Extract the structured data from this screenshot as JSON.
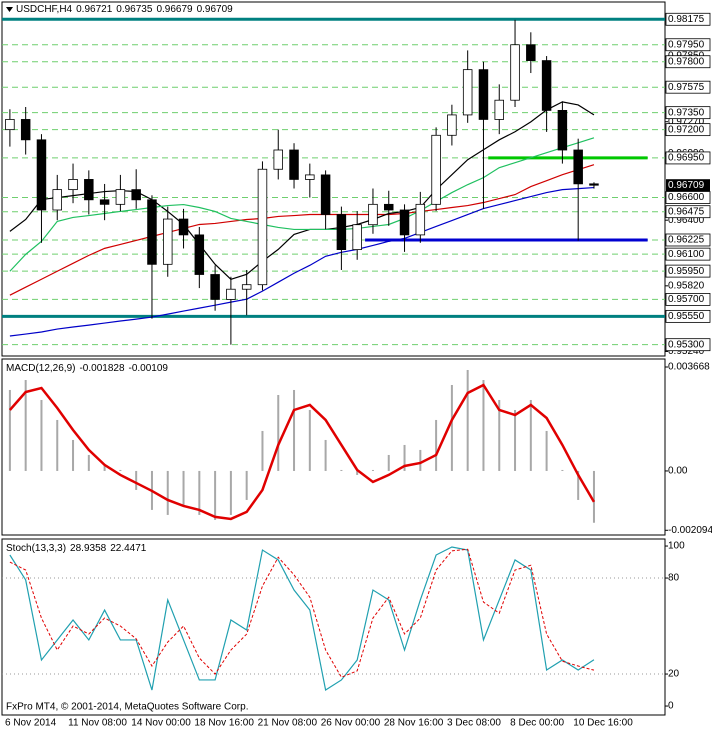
{
  "chart_data": [
    {
      "type": "candlestick",
      "title": "USDCHF,H4",
      "categories": [
        "6 Nov 2014",
        null,
        null,
        null,
        "11 Nov 08:00",
        null,
        null,
        null,
        "14 Nov 00:00",
        null,
        null,
        null,
        "18 Nov 16:00",
        null,
        null,
        null,
        "21 Nov 08:00",
        null,
        null,
        null,
        "26 Nov 00:00",
        null,
        null,
        null,
        "28 Nov 16:00",
        null,
        null,
        null,
        "3 Dec 08:00",
        null,
        null,
        null,
        "8 Dec 00:00",
        null,
        null,
        null,
        "10 Dec 16:00",
        null
      ],
      "open": [
        0.972,
        0.9729,
        0.9711,
        0.9649,
        0.9667,
        0.9676,
        0.9658,
        0.9654,
        0.9667,
        0.9658,
        0.9601,
        0.9641,
        0.9627,
        0.9592,
        0.957,
        0.9579,
        0.9583,
        0.9685,
        0.9702,
        0.9676,
        0.968,
        0.9645,
        0.9614,
        0.9636,
        0.9654,
        0.9649,
        0.9627,
        0.9654,
        0.9715,
        0.9733,
        0.9773,
        0.9729,
        0.9746,
        0.9795,
        0.9781,
        0.9737,
        0.9702,
        0.96721
      ],
      "high": [
        0.9738,
        0.974,
        0.9716,
        0.968,
        0.969,
        0.9684,
        0.9672,
        0.968,
        0.9685,
        0.9662,
        0.9652,
        0.965,
        0.9634,
        0.96,
        0.959,
        0.9596,
        0.9692,
        0.972,
        0.9708,
        0.969,
        0.9684,
        0.9652,
        0.9648,
        0.9668,
        0.9666,
        0.9654,
        0.9665,
        0.9722,
        0.9742,
        0.979,
        0.978,
        0.976,
        0.9817,
        0.9806,
        0.9785,
        0.9745,
        0.9712,
        0.96735
      ],
      "low": [
        0.9705,
        0.9698,
        0.962,
        0.964,
        0.9655,
        0.9645,
        0.964,
        0.9648,
        0.965,
        0.9553,
        0.959,
        0.9615,
        0.958,
        0.956,
        0.953,
        0.9556,
        0.9578,
        0.9676,
        0.9668,
        0.966,
        0.9632,
        0.9596,
        0.9605,
        0.9628,
        0.9635,
        0.9612,
        0.962,
        0.9648,
        0.9706,
        0.9726,
        0.965,
        0.9716,
        0.974,
        0.977,
        0.9718,
        0.969,
        0.9622,
        0.96679
      ],
      "close": [
        0.9729,
        0.9711,
        0.9649,
        0.9667,
        0.9676,
        0.9658,
        0.9654,
        0.9667,
        0.9658,
        0.9601,
        0.9641,
        0.9627,
        0.9592,
        0.957,
        0.9579,
        0.9583,
        0.9685,
        0.9702,
        0.9676,
        0.968,
        0.9645,
        0.9614,
        0.9636,
        0.9654,
        0.9649,
        0.9627,
        0.9654,
        0.9715,
        0.9733,
        0.9773,
        0.9729,
        0.9746,
        0.9795,
        0.9781,
        0.9737,
        0.9702,
        0.96721,
        0.96709
      ],
      "up_color": "#ffffff",
      "down_color": "#000000",
      "series": [
        {
          "color": "#0000c8",
          "values": [
            0.95377,
            0.95394,
            0.95412,
            0.95438,
            0.95456,
            0.95473,
            0.95491,
            0.95509,
            0.95526,
            0.95544,
            0.9557,
            0.95597,
            0.95623,
            0.95649,
            0.95676,
            0.95702,
            0.95773,
            0.95852,
            0.95931,
            0.96001,
            0.96081,
            0.96116,
            0.96142,
            0.96177,
            0.96213,
            0.96239,
            0.96292,
            0.96345,
            0.96397,
            0.9645,
            0.96503,
            0.96538,
            0.96573,
            0.96609,
            0.96644,
            0.9667,
            0.96679,
            0.96688
          ]
        },
        {
          "color": "#d00000",
          "values": [
            0.95737,
            0.95808,
            0.95878,
            0.95949,
            0.96019,
            0.96089,
            0.96151,
            0.96186,
            0.96221,
            0.96257,
            0.96292,
            0.96327,
            0.96362,
            0.96371,
            0.96389,
            0.96406,
            0.96415,
            0.96433,
            0.96441,
            0.9645,
            0.9645,
            0.9645,
            0.9645,
            0.9645,
            0.9645,
            0.96459,
            0.96477,
            0.96494,
            0.96512,
            0.96529,
            0.96556,
            0.96591,
            0.96626,
            0.96697,
            0.96749,
            0.96802,
            0.96846,
            0.9689
          ]
        },
        {
          "color": "#000000",
          "values": [
            0.96301,
            0.96406,
            0.96582,
            0.966,
            0.96617,
            0.96635,
            0.96653,
            0.96661,
            0.96653,
            0.96582,
            0.96477,
            0.96362,
            0.96186,
            0.9601,
            0.95878,
            0.95922,
            0.96037,
            0.96142,
            0.96274,
            0.96318,
            0.96318,
            0.96336,
            0.96362,
            0.96406,
            0.96459,
            0.96477,
            0.96512,
            0.9667,
            0.96802,
            0.96934,
            0.97022,
            0.9711,
            0.97181,
            0.97269,
            0.97374,
            0.97445,
            0.97418,
            0.9733
          ]
        },
        {
          "color": "#20c060",
          "values": [
            0.95949,
            0.96098,
            0.96213,
            0.96389,
            0.96424,
            0.96441,
            0.96459,
            0.96477,
            0.96494,
            0.96512,
            0.96529,
            0.96538,
            0.96512,
            0.96477,
            0.96415,
            0.96389,
            0.96362,
            0.96336,
            0.96318,
            0.96318,
            0.96318,
            0.96318,
            0.96327,
            0.96345,
            0.96362,
            0.96415,
            0.96485,
            0.96565,
            0.96644,
            0.96714,
            0.96776,
            0.96864,
            0.96908,
            0.96952,
            0.96996,
            0.9704,
            0.97084,
            0.97128
          ]
        }
      ],
      "xlim": [
        -0.5,
        41.5
      ],
      "ylim": [
        0.952,
        0.9831
      ],
      "yticks": [
        {
          "value": 0.9785,
          "label": "0.97850"
        },
        {
          "value": 0.9727,
          "label": "0.97270"
        },
        {
          "value": 0.9699,
          "label": "0.96990"
        },
        {
          "value": 0.964,
          "label": "0.96400"
        },
        {
          "value": 0.9582,
          "label": "0.95820"
        },
        {
          "value": 0.9524,
          "label": "0.95240"
        }
      ],
      "levels": [
        {
          "value": 0.98175,
          "label": "0.98175"
        },
        {
          "value": 0.9795,
          "label": "0.97950"
        },
        {
          "value": 0.978,
          "label": "0.97800"
        },
        {
          "value": 0.97575,
          "label": "0.97575"
        },
        {
          "value": 0.9735,
          "label": "0.97350"
        },
        {
          "value": 0.972,
          "label": "0.97200"
        },
        {
          "value": 0.9695,
          "label": "0.96950"
        },
        {
          "value": 0.966,
          "label": "0.96600"
        },
        {
          "value": 0.96475,
          "label": "0.96475"
        },
        {
          "value": 0.96225,
          "label": "0.96225"
        },
        {
          "value": 0.961,
          "label": "0.96100"
        },
        {
          "value": 0.9595,
          "label": "0.95950"
        },
        {
          "value": 0.957,
          "label": "0.95700"
        },
        {
          "value": 0.9555,
          "label": "0.95550"
        },
        {
          "value": 0.953,
          "label": "0.95300"
        }
      ],
      "lines": [
        {
          "value": 0.98175,
          "color": "#008080"
        },
        {
          "value": 0.9555,
          "color": "#008080"
        },
        {
          "value": 0.9695,
          "color": "#00c800",
          "x": [
            30.3,
            40.4
          ]
        },
        {
          "value": 0.96225,
          "color": "#0000d0",
          "x": [
            22.5,
            40.4
          ]
        }
      ]
    },
    {
      "type": "macd",
      "title": "MACD(12,26,9)",
      "series": [
        {
          "color": "#a8a8a8",
          "values": [
            0.002857,
            0.003209,
            0.002504,
            0.001799,
            0.001093,
            0.000564,
            0.000212,
            3.5e-05,
            -0.00067,
            -0.001375,
            -0.001552,
            -0.001199,
            -0.001552,
            -0.001728,
            -0.001552,
            -0.001023,
            0.001411,
            0.00268,
            0.002857,
            0.002151,
            0.001093,
            3.5e-05,
            -0.000141,
            3.5e-05,
            0.000564,
            0.000917,
            0.000741,
            0.001799,
            0.003033,
            0.003562,
            0.003209,
            0.002504,
            0.002151,
            0.002504,
            0.001411,
            3.5e-05,
            -0.001023,
            -0.001828
          ]
        },
        {
          "color": "#e00000",
          "values": [
            0.002151,
            0.002786,
            0.002927,
            0.002222,
            0.001446,
            0.000741,
            0.000212,
            -0.000141,
            -0.000423,
            -0.000705,
            -0.001023,
            -0.001234,
            -0.001375,
            -0.001622,
            -0.001693,
            -0.001446,
            -0.00067,
            0.000917,
            0.002151,
            0.002328,
            0.001799,
            0.000917,
            3.5e-05,
            -0.000388,
            -0.000141,
            0.000176,
            0.000282,
            0.000564,
            0.001799,
            0.002751,
            0.003033,
            0.002151,
            0.001975,
            0.002328,
            0.001869,
            0.000917,
            -0.000141,
            -0.00109
          ]
        }
      ],
      "ylim": [
        -0.00226,
        0.00395
      ],
      "yticks": [
        0.003668,
        {
          "value": 0,
          "label": "0.00"
        },
        -0.002094
      ]
    },
    {
      "type": "stochastic",
      "title": "Stoch(13,3,3)",
      "series": [
        {
          "color": "#20a0b0",
          "values": [
            94.4,
            78.8,
            28.8,
            41.3,
            53.8,
            41.3,
            60,
            41.3,
            41.3,
            10,
            66.3,
            41.3,
            16.3,
            16.3,
            53.8,
            47.5,
            97.5,
            91.3,
            72.5,
            60,
            10,
            16.3,
            28.8,
            72.5,
            66.3,
            35,
            66.3,
            94.4,
            99.4,
            97.5,
            41.3,
            66.3,
            91.3,
            85,
            22.5,
            28.8,
            22.5,
            28.9358
          ]
        },
        {
          "color": "#e00000",
          "values": [
            90,
            85,
            55,
            35,
            50,
            45,
            55,
            50,
            42,
            25,
            40,
            50,
            30,
            20,
            35,
            45,
            75,
            93,
            82,
            68,
            35,
            18,
            22,
            55,
            68,
            45,
            55,
            85,
            97,
            98,
            65,
            58,
            85,
            88,
            45,
            28,
            25,
            22.4471
          ]
        }
      ],
      "ylim": [
        -5.6,
        104.4
      ],
      "yticks": [
        100,
        80,
        20,
        0
      ],
      "dotted_levels": [
        80,
        20
      ],
      "copyright": "FxPro MT4, © 2001-2014, MetaQuotes Software Corp."
    }
  ]
}
